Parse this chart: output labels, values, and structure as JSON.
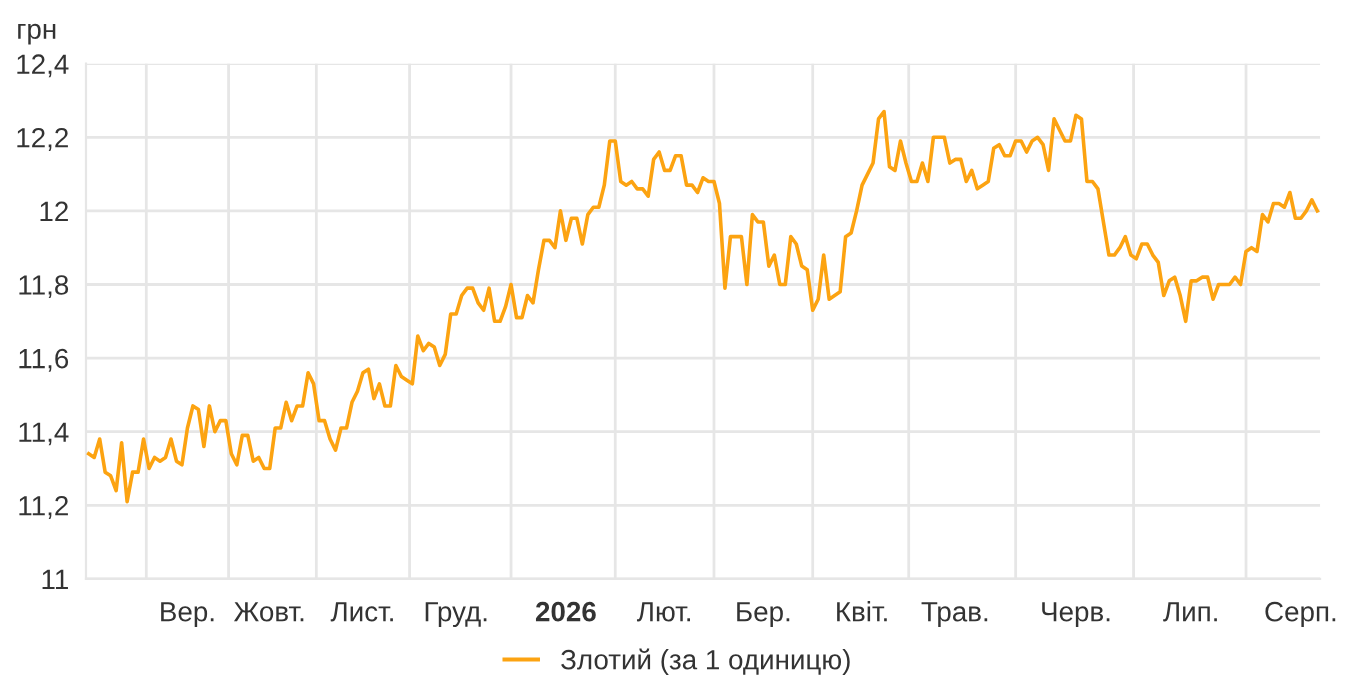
{
  "chart_data": {
    "type": "line",
    "ylabel": "грн",
    "legend": "bottom",
    "grid": true,
    "marker": "none",
    "line_style": "solid",
    "ylim": [
      11,
      12.4
    ],
    "yticks": [
      11,
      {
        "value": 11.2,
        "label": "11,2"
      },
      {
        "value": 11.4,
        "label": "11,4"
      },
      {
        "value": 11.6,
        "label": "11,6"
      },
      {
        "value": 11.8,
        "label": "11,8"
      },
      12,
      {
        "value": 12.2,
        "label": "12,2"
      },
      {
        "value": 12.4,
        "label": "12,4"
      }
    ],
    "categories": [
      null,
      null,
      null,
      null,
      null,
      null,
      null,
      null,
      null,
      null,
      null,
      null,
      null,
      null,
      null,
      null,
      null,
      null,
      "Вер.",
      null,
      null,
      null,
      null,
      null,
      null,
      null,
      null,
      null,
      null,
      null,
      null,
      null,
      null,
      "Жовт.",
      null,
      null,
      null,
      null,
      null,
      null,
      null,
      null,
      null,
      null,
      null,
      null,
      null,
      null,
      null,
      null,
      "Лист.",
      null,
      null,
      null,
      null,
      null,
      null,
      null,
      null,
      null,
      null,
      null,
      null,
      null,
      null,
      null,
      null,
      "Груд.",
      null,
      null,
      null,
      null,
      null,
      null,
      null,
      null,
      null,
      null,
      null,
      null,
      null,
      null,
      null,
      null,
      null,
      null,
      null,
      "2026",
      null,
      null,
      null,
      null,
      null,
      null,
      null,
      null,
      null,
      null,
      null,
      null,
      null,
      null,
      null,
      null,
      null,
      "Лют.",
      null,
      null,
      null,
      null,
      null,
      null,
      null,
      null,
      null,
      null,
      null,
      null,
      null,
      null,
      null,
      null,
      null,
      "Бер.",
      null,
      null,
      null,
      null,
      null,
      null,
      null,
      null,
      null,
      null,
      null,
      null,
      null,
      null,
      null,
      null,
      null,
      "Квіт.",
      null,
      null,
      null,
      null,
      null,
      null,
      null,
      null,
      null,
      null,
      null,
      null,
      null,
      null,
      null,
      null,
      "Трав.",
      null,
      null,
      null,
      null,
      null,
      null,
      null,
      null,
      null,
      null,
      null,
      null,
      null,
      null,
      null,
      null,
      null,
      null,
      null,
      null,
      null,
      "Черв.",
      null,
      null,
      null,
      null,
      null,
      null,
      null,
      null,
      null,
      null,
      null,
      null,
      null,
      null,
      null,
      null,
      null,
      null,
      null,
      null,
      "Лип.",
      null,
      null,
      null,
      null,
      null,
      null,
      null,
      null,
      null,
      null,
      null,
      null,
      null,
      null,
      null,
      null,
      null,
      null,
      null,
      "Серп.",
      null,
      null,
      null
    ],
    "series": [
      {
        "name": "Злотий (за 1 одиницю)",
        "color": "#fca311",
        "values": [
          11.34,
          11.33,
          11.38,
          11.29,
          11.28,
          11.24,
          11.37,
          11.21,
          11.29,
          11.29,
          11.38,
          11.3,
          11.33,
          11.32,
          11.33,
          11.38,
          11.32,
          11.31,
          11.41,
          11.47,
          11.46,
          11.36,
          11.47,
          11.4,
          11.43,
          11.43,
          11.34,
          11.31,
          11.39,
          11.39,
          11.32,
          11.33,
          11.3,
          11.3,
          11.41,
          11.41,
          11.48,
          11.43,
          11.47,
          11.47,
          11.56,
          11.53,
          11.43,
          11.43,
          11.38,
          11.35,
          11.41,
          11.41,
          11.48,
          11.51,
          11.56,
          11.57,
          11.49,
          11.53,
          11.47,
          11.47,
          11.58,
          11.55,
          11.54,
          11.53,
          11.66,
          11.62,
          11.64,
          11.63,
          11.58,
          11.61,
          11.72,
          11.72,
          11.77,
          11.79,
          11.79,
          11.75,
          11.73,
          11.79,
          11.7,
          11.7,
          11.74,
          11.8,
          11.71,
          11.71,
          11.77,
          11.75,
          11.84,
          11.92,
          11.92,
          11.9,
          12.0,
          11.92,
          11.98,
          11.98,
          11.91,
          11.99,
          12.01,
          12.01,
          12.07,
          12.19,
          12.19,
          12.08,
          12.07,
          12.08,
          12.06,
          12.06,
          12.04,
          12.14,
          12.16,
          12.11,
          12.11,
          12.15,
          12.15,
          12.07,
          12.07,
          12.05,
          12.09,
          12.08,
          12.08,
          12.02,
          11.79,
          11.93,
          11.93,
          11.93,
          11.8,
          11.99,
          11.97,
          11.97,
          11.85,
          11.88,
          11.8,
          11.8,
          11.93,
          11.91,
          11.85,
          11.84,
          11.73,
          11.76,
          11.88,
          11.76,
          11.77,
          11.78,
          11.93,
          11.94,
          12.0,
          12.07,
          12.1,
          12.13,
          12.25,
          12.27,
          12.12,
          12.11,
          12.19,
          12.13,
          12.08,
          12.08,
          12.13,
          12.08,
          12.2,
          12.2,
          12.2,
          12.13,
          12.14,
          12.14,
          12.08,
          12.11,
          12.06,
          12.07,
          12.08,
          12.17,
          12.18,
          12.15,
          12.15,
          12.19,
          12.19,
          12.16,
          12.19,
          12.2,
          12.18,
          12.11,
          12.25,
          12.22,
          12.19,
          12.19,
          12.26,
          12.25,
          12.08,
          12.08,
          12.06,
          11.97,
          11.88,
          11.88,
          11.9,
          11.93,
          11.88,
          11.87,
          11.91,
          11.91,
          11.88,
          11.86,
          11.77,
          11.81,
          11.82,
          11.77,
          11.7,
          11.81,
          11.81,
          11.82,
          11.82,
          11.76,
          11.8,
          11.8,
          11.8,
          11.82,
          11.8,
          11.89,
          11.9,
          11.89,
          11.99,
          11.97,
          12.02,
          12.02,
          12.01,
          12.05,
          11.98,
          11.98,
          12.0,
          12.03,
          12.0
        ]
      }
    ]
  }
}
